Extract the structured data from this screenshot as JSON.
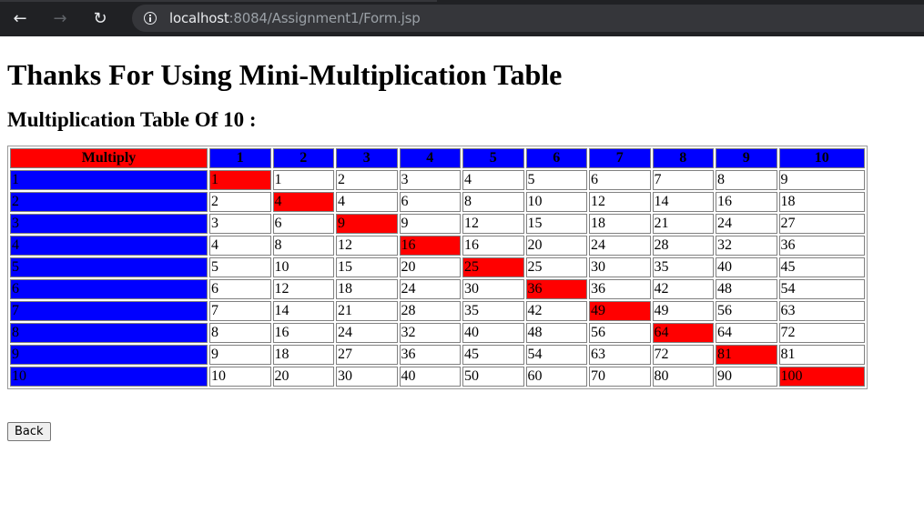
{
  "browser": {
    "url_host": "localhost",
    "url_rest": ":8084/Assignment1/Form.jsp"
  },
  "page": {
    "heading": "Thanks For Using Mini-Multiplication Table",
    "subheading": "Multiplication Table Of 10 :",
    "back_label": "Back"
  },
  "colors": {
    "header_red": "#ff0000",
    "header_blue": "#0000ff",
    "row_header_blue": "#0000ff",
    "diagonal_red": "#ff0000",
    "cell_white": "#ffffff"
  },
  "table": {
    "corner_label": "Multiply",
    "col_headers": [
      "1",
      "2",
      "3",
      "4",
      "5",
      "6",
      "7",
      "8",
      "9",
      "10"
    ],
    "row_headers": [
      "1",
      "2",
      "3",
      "4",
      "5",
      "6",
      "7",
      "8",
      "9",
      "10"
    ],
    "rows": [
      [
        "1",
        "1",
        "2",
        "3",
        "4",
        "5",
        "6",
        "7",
        "8",
        "9"
      ],
      [
        "2",
        "4",
        "4",
        "6",
        "8",
        "10",
        "12",
        "14",
        "16",
        "18"
      ],
      [
        "3",
        "6",
        "9",
        "9",
        "12",
        "15",
        "18",
        "21",
        "24",
        "27"
      ],
      [
        "4",
        "8",
        "12",
        "16",
        "16",
        "20",
        "24",
        "28",
        "32",
        "36"
      ],
      [
        "5",
        "10",
        "15",
        "20",
        "25",
        "25",
        "30",
        "35",
        "40",
        "45"
      ],
      [
        "6",
        "12",
        "18",
        "24",
        "30",
        "36",
        "36",
        "42",
        "48",
        "54"
      ],
      [
        "7",
        "14",
        "21",
        "28",
        "35",
        "42",
        "49",
        "49",
        "56",
        "63"
      ],
      [
        "8",
        "16",
        "24",
        "32",
        "40",
        "48",
        "56",
        "64",
        "64",
        "72"
      ],
      [
        "9",
        "18",
        "27",
        "36",
        "45",
        "54",
        "63",
        "72",
        "81",
        "81"
      ],
      [
        "10",
        "20",
        "30",
        "40",
        "50",
        "60",
        "70",
        "80",
        "90",
        "100"
      ]
    ],
    "highlight_cells": [
      [
        0,
        0
      ],
      [
        1,
        1
      ],
      [
        2,
        2
      ],
      [
        3,
        3
      ],
      [
        4,
        4
      ],
      [
        5,
        5
      ],
      [
        6,
        6
      ],
      [
        7,
        7
      ],
      [
        8,
        8
      ],
      [
        9,
        9
      ]
    ]
  }
}
